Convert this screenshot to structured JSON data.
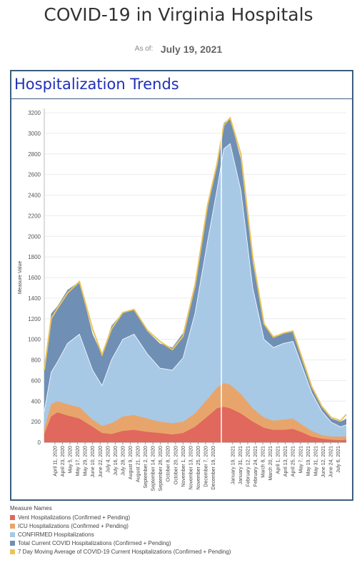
{
  "header": {
    "title": "COVID-19 in Virginia Hospitals",
    "as_of_label": "As of:",
    "as_of_date": "July 19, 2021"
  },
  "panel": {
    "title": "Hospitalization Trends"
  },
  "legend": {
    "title": "Measure Names",
    "items": [
      {
        "label": "Vent Hospitalizations (Confirmed + Pending)",
        "color": "#e0685c"
      },
      {
        "label": "ICU Hospitalizations (Confirmed + Pending)",
        "color": "#e8a56b"
      },
      {
        "label": "CONFIRMED Hospitalizations",
        "color": "#a7c9e6"
      },
      {
        "label": "Total Current COVID Hospitalizations (Confirmed + Pending)",
        "color": "#6f8fb5"
      },
      {
        "label": "7 Day Moving Average of COVID-19 Current Hospitalizations (Confirmed + Pending)",
        "color": "#e9c45a"
      }
    ]
  },
  "chart_data": {
    "type": "area",
    "ylabel": "Measure Value",
    "ylim": [
      0,
      3200
    ],
    "yticks": [
      0,
      200,
      400,
      600,
      800,
      1000,
      1200,
      1400,
      1600,
      1800,
      2000,
      2200,
      2400,
      2600,
      2800,
      3000,
      3200
    ],
    "xlim": [
      "2020-03-25",
      "2021-07-19"
    ],
    "xticks": [
      "April 11, 2020",
      "April 23, 2020",
      "May 5, 2020",
      "May 17, 2020",
      "May 29, 2020",
      "June 10, 2020",
      "June 22, 2020",
      "July 4, 2020",
      "July 16, 2020",
      "July 28, 2020",
      "August 9, 2020",
      "August 21, 2020",
      "September 2, 2020",
      "September 14, 2020",
      "September 26, 2020",
      "October 8, 2020",
      "October 20, 2020",
      "November 1, 2020",
      "November 13, 2020",
      "November 25, 2020",
      "December 7, 2020",
      "December 19, 2020",
      "January 19, 2021",
      "January 31, 2021",
      "February 12, 2021",
      "February 24, 2021",
      "March 8, 2021",
      "March 20, 2021",
      "April 1, 2021",
      "April 13, 2021",
      "April 25, 2021",
      "May 7, 2021",
      "May 19, 2021",
      "May 31, 2021",
      "June 12, 2021",
      "June 24, 2021",
      "July 6, 2021"
    ],
    "xtick_dates": [
      "2020-04-11",
      "2020-04-23",
      "2020-05-05",
      "2020-05-17",
      "2020-05-29",
      "2020-06-10",
      "2020-06-22",
      "2020-07-04",
      "2020-07-16",
      "2020-07-28",
      "2020-08-09",
      "2020-08-21",
      "2020-09-02",
      "2020-09-14",
      "2020-09-26",
      "2020-10-08",
      "2020-10-20",
      "2020-11-01",
      "2020-11-13",
      "2020-11-25",
      "2020-12-07",
      "2020-12-19",
      "2021-01-19",
      "2021-01-31",
      "2021-02-12",
      "2021-02-24",
      "2021-03-08",
      "2021-03-20",
      "2021-04-01",
      "2021-04-13",
      "2021-04-25",
      "2021-05-07",
      "2021-05-19",
      "2021-05-31",
      "2021-06-12",
      "2021-06-24",
      "2021-07-06"
    ],
    "divider_date": "2021-01-01",
    "series": [
      {
        "name": "Vent Hospitalizations (Confirmed + Pending)",
        "color": "#e0685c",
        "dates": [
          "2020-03-25",
          "2020-04-05",
          "2020-04-15",
          "2020-05-01",
          "2020-05-20",
          "2020-06-10",
          "2020-06-25",
          "2020-07-10",
          "2020-07-28",
          "2020-08-15",
          "2020-09-05",
          "2020-09-25",
          "2020-10-15",
          "2020-11-01",
          "2020-11-20",
          "2020-12-10",
          "2020-12-25",
          "2021-01-05",
          "2021-01-15",
          "2021-02-01",
          "2021-02-20",
          "2021-03-10",
          "2021-03-25",
          "2021-04-10",
          "2021-04-25",
          "2021-05-10",
          "2021-05-25",
          "2021-06-10",
          "2021-06-25",
          "2021-07-10",
          "2021-07-19"
        ],
        "values": [
          80,
          250,
          290,
          260,
          230,
          150,
          90,
          80,
          110,
          120,
          100,
          90,
          75,
          90,
          150,
          250,
          330,
          345,
          330,
          280,
          200,
          140,
          120,
          120,
          130,
          95,
          55,
          35,
          25,
          20,
          25
        ]
      },
      {
        "name": "ICU Hospitalizations (Confirmed + Pending)",
        "color": "#e8a56b",
        "dates": [
          "2020-03-25",
          "2020-04-05",
          "2020-04-15",
          "2020-05-01",
          "2020-05-20",
          "2020-06-10",
          "2020-06-25",
          "2020-07-10",
          "2020-07-28",
          "2020-08-15",
          "2020-09-05",
          "2020-09-25",
          "2020-10-15",
          "2020-11-01",
          "2020-11-20",
          "2020-12-10",
          "2020-12-25",
          "2021-01-05",
          "2021-01-15",
          "2021-02-01",
          "2021-02-20",
          "2021-03-10",
          "2021-03-25",
          "2021-04-10",
          "2021-04-25",
          "2021-05-10",
          "2021-05-25",
          "2021-06-10",
          "2021-06-25",
          "2021-07-10",
          "2021-07-19"
        ],
        "values": [
          130,
          370,
          400,
          370,
          340,
          220,
          160,
          185,
          250,
          265,
          230,
          200,
          185,
          200,
          280,
          420,
          530,
          575,
          560,
          470,
          330,
          240,
          210,
          220,
          230,
          170,
          110,
          70,
          55,
          55,
          60
        ]
      },
      {
        "name": "CONFIRMED Hospitalizations",
        "color": "#a7c9e6",
        "dates": [
          "2020-03-25",
          "2020-04-05",
          "2020-04-15",
          "2020-05-01",
          "2020-05-20",
          "2020-06-10",
          "2020-06-25",
          "2020-07-10",
          "2020-07-28",
          "2020-08-15",
          "2020-09-05",
          "2020-09-25",
          "2020-10-15",
          "2020-11-01",
          "2020-11-20",
          "2020-12-10",
          "2020-12-25",
          "2021-01-05",
          "2021-01-15",
          "2021-02-01",
          "2021-02-20",
          "2021-03-10",
          "2021-03-25",
          "2021-04-10",
          "2021-04-25",
          "2021-05-10",
          "2021-05-25",
          "2021-06-10",
          "2021-06-25",
          "2021-07-10",
          "2021-07-19"
        ],
        "values": [
          300,
          680,
          780,
          960,
          1050,
          700,
          550,
          800,
          1000,
          1050,
          860,
          720,
          700,
          820,
          1250,
          1950,
          2450,
          2850,
          2900,
          2450,
          1500,
          1000,
          920,
          960,
          980,
          730,
          480,
          300,
          195,
          150,
          170
        ]
      },
      {
        "name": "Total Current COVID Hospitalizations (Confirmed + Pending)",
        "color": "#6f8fb5",
        "dates": [
          "2020-03-25",
          "2020-04-05",
          "2020-04-15",
          "2020-05-01",
          "2020-05-20",
          "2020-06-10",
          "2020-06-25",
          "2020-07-10",
          "2020-07-28",
          "2020-08-15",
          "2020-09-05",
          "2020-09-25",
          "2020-10-15",
          "2020-11-01",
          "2020-11-20",
          "2020-12-10",
          "2020-12-25",
          "2021-01-05",
          "2021-01-15",
          "2021-02-01",
          "2021-02-20",
          "2021-03-10",
          "2021-03-25",
          "2021-04-10",
          "2021-04-25",
          "2021-05-10",
          "2021-05-25",
          "2021-06-10",
          "2021-06-25",
          "2021-07-10",
          "2021-07-19"
        ],
        "values": [
          700,
          1250,
          1320,
          1480,
          1560,
          1050,
          850,
          1130,
          1260,
          1290,
          1080,
          960,
          920,
          1060,
          1550,
          2300,
          2700,
          3100,
          3150,
          2750,
          1750,
          1150,
          1030,
          1060,
          1080,
          800,
          540,
          340,
          230,
          200,
          230
        ]
      },
      {
        "name": "7 Day Moving Average of COVID-19 Current Hospitalizations (Confirmed + Pending)",
        "color": "#e9c45a",
        "dates": [
          "2020-03-25",
          "2020-04-05",
          "2020-04-15",
          "2020-05-01",
          "2020-05-20",
          "2020-06-10",
          "2020-06-25",
          "2020-07-10",
          "2020-07-28",
          "2020-08-15",
          "2020-09-05",
          "2020-09-25",
          "2020-10-15",
          "2020-11-01",
          "2020-11-20",
          "2020-12-10",
          "2020-12-25",
          "2021-01-05",
          "2021-01-15",
          "2021-02-01",
          "2021-02-20",
          "2021-03-10",
          "2021-03-25",
          "2021-04-10",
          "2021-04-25",
          "2021-05-10",
          "2021-05-25",
          "2021-06-10",
          "2021-06-25",
          "2021-07-10",
          "2021-07-19"
        ],
        "values": [
          700,
          1200,
          1300,
          1450,
          1560,
          1100,
          850,
          1100,
          1260,
          1290,
          1090,
          980,
          900,
          1030,
          1520,
          2300,
          2700,
          3080,
          3150,
          2800,
          1800,
          1150,
          1020,
          1060,
          1080,
          810,
          540,
          350,
          240,
          210,
          270
        ]
      }
    ]
  }
}
